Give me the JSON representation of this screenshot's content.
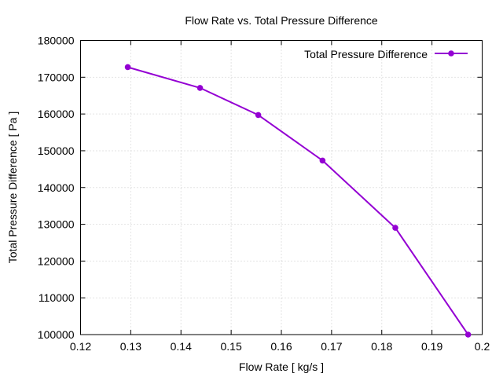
{
  "chart_data": {
    "type": "line",
    "title": "Flow Rate vs. Total Pressure Difference",
    "xlabel": "Flow Rate [ kg/s ]",
    "ylabel": "Total Pressure Difference [ Pa ]",
    "xlim": [
      0.12,
      0.2
    ],
    "ylim": [
      100000,
      180000
    ],
    "xticks": [
      0.12,
      0.13,
      0.14,
      0.15,
      0.16,
      0.17,
      0.18,
      0.19,
      0.2
    ],
    "xtick_labels": [
      "0.12",
      "0.13",
      "0.14",
      "0.15",
      "0.16",
      "0.17",
      "0.18",
      "0.19",
      "0.2"
    ],
    "yticks": [
      100000,
      110000,
      120000,
      130000,
      140000,
      150000,
      160000,
      170000,
      180000
    ],
    "ytick_labels": [
      "100000",
      "110000",
      "120000",
      "130000",
      "140000",
      "150000",
      "160000",
      "170000",
      "180000"
    ],
    "grid": true,
    "legend_position": "top-right",
    "series": [
      {
        "name": "Total Pressure Difference",
        "color": "#9400d3",
        "marker": "circle",
        "x": [
          0.1294,
          0.1438,
          0.1554,
          0.1682,
          0.1827,
          0.1972
        ],
        "y": [
          172740,
          167100,
          159720,
          147330,
          129040,
          100000
        ]
      }
    ]
  }
}
